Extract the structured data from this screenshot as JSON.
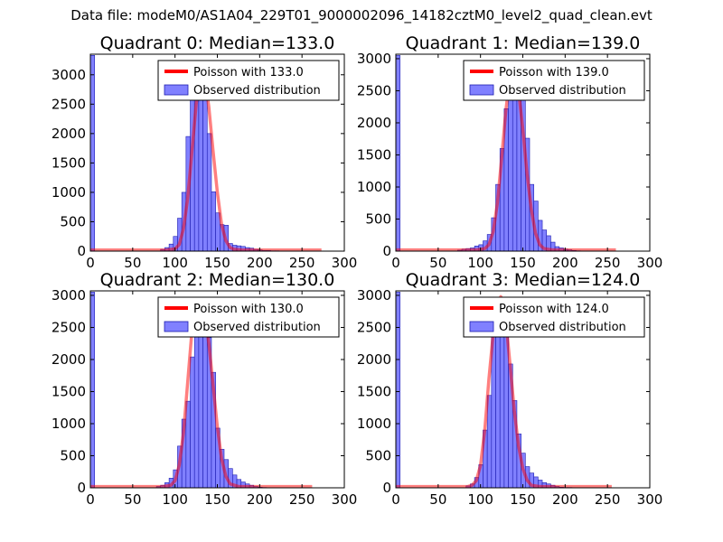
{
  "figure": {
    "suptitle": "Data file: modeM0/AS1A04_229T01_9000002096_14182cztM0_level2_quad_clean.evt"
  },
  "colors": {
    "bar_fill": "#8080ff",
    "bar_stroke": "#1c1cb0",
    "poisson_line": "#ff0000"
  },
  "chart_data": [
    {
      "type": "bar",
      "title": "Quadrant 0: Median=133.0",
      "xlim": [
        0,
        300
      ],
      "ylim": [
        0,
        3350
      ],
      "xticks": [
        "0",
        "50",
        "100",
        "150",
        "200",
        "250",
        "300"
      ],
      "yticks": [
        "0",
        "500",
        "1000",
        "1500",
        "2000",
        "2500",
        "3000"
      ],
      "legend": {
        "placement": "top-right",
        "line_label": "Poisson with 133.0",
        "bar_label": "Observed distribution"
      },
      "bins_left": [
        0,
        83,
        88,
        93,
        98,
        103,
        108,
        113,
        118,
        123,
        128,
        133,
        138,
        143,
        148,
        153,
        158,
        163,
        168,
        173,
        178,
        183,
        188,
        193,
        198,
        203,
        208,
        213,
        218
      ],
      "bin_width": 5,
      "counts": [
        3330,
        30,
        60,
        120,
        250,
        560,
        1000,
        1950,
        2730,
        3170,
        3170,
        2750,
        2000,
        1010,
        650,
        450,
        440,
        130,
        100,
        90,
        80,
        60,
        50,
        30,
        20,
        10,
        10,
        5,
        5
      ],
      "poisson": {
        "label": "Poisson with 133.0",
        "x": [
          0,
          90,
          100,
          105,
          110,
          115,
          120,
          125,
          130,
          133,
          135,
          140,
          145,
          150,
          155,
          160,
          165,
          170,
          180,
          273
        ],
        "y": [
          20,
          20,
          40,
          110,
          380,
          900,
          1700,
          2500,
          3000,
          3160,
          3000,
          2450,
          1700,
          1000,
          450,
          180,
          60,
          30,
          20,
          20
        ]
      }
    },
    {
      "type": "bar",
      "title": "Quadrant 1: Median=139.0",
      "xlim": [
        0,
        300
      ],
      "ylim": [
        0,
        3070
      ],
      "xticks": [
        "0",
        "50",
        "100",
        "150",
        "200",
        "250",
        "300"
      ],
      "yticks": [
        "0",
        "500",
        "1000",
        "1500",
        "2000",
        "2500",
        "3000"
      ],
      "legend": {
        "placement": "top-right",
        "line_label": "Poisson with 139.0",
        "bar_label": "Observed distribution"
      },
      "bins_left": [
        0,
        73,
        78,
        83,
        88,
        93,
        98,
        103,
        108,
        113,
        118,
        123,
        128,
        133,
        138,
        143,
        148,
        153,
        158,
        163,
        168,
        173,
        178,
        183,
        188,
        193,
        198,
        203,
        208,
        213
      ],
      "bin_width": 5,
      "counts": [
        3050,
        15,
        30,
        40,
        50,
        80,
        100,
        160,
        260,
        520,
        1040,
        1600,
        2220,
        2580,
        2760,
        2920,
        2360,
        1760,
        1040,
        780,
        480,
        330,
        240,
        140,
        70,
        50,
        30,
        20,
        10,
        5
      ],
      "poisson": {
        "label": "Poisson with 139.0",
        "x": [
          0,
          95,
          105,
          110,
          115,
          120,
          125,
          130,
          135,
          139,
          140,
          145,
          150,
          155,
          160,
          165,
          170,
          175,
          185,
          260
        ],
        "y": [
          20,
          20,
          40,
          100,
          300,
          750,
          1450,
          2200,
          2750,
          2950,
          2900,
          2500,
          1900,
          1200,
          650,
          280,
          100,
          40,
          20,
          20
        ]
      }
    },
    {
      "type": "bar",
      "title": "Quadrant 2: Median=130.0",
      "xlim": [
        0,
        300
      ],
      "ylim": [
        0,
        3070
      ],
      "xticks": [
        "0",
        "50",
        "100",
        "150",
        "200",
        "250",
        "300"
      ],
      "yticks": [
        "0",
        "500",
        "1000",
        "1500",
        "2000",
        "2500",
        "3000"
      ],
      "legend": {
        "placement": "top-right",
        "line_label": "Poisson with 130.0",
        "bar_label": "Observed distribution"
      },
      "bins_left": [
        0,
        78,
        83,
        88,
        93,
        98,
        103,
        108,
        113,
        118,
        123,
        128,
        133,
        138,
        143,
        148,
        153,
        158,
        163,
        168,
        173,
        178,
        183,
        188,
        193,
        198,
        203
      ],
      "bin_width": 5,
      "counts": [
        3050,
        20,
        40,
        80,
        150,
        280,
        650,
        1070,
        1350,
        2040,
        2580,
        2850,
        2710,
        2340,
        1800,
        930,
        600,
        440,
        300,
        200,
        130,
        90,
        60,
        40,
        20,
        10,
        5
      ],
      "poisson": {
        "label": "Poisson with 130.0",
        "x": [
          0,
          85,
          95,
          100,
          105,
          110,
          115,
          120,
          125,
          130,
          135,
          140,
          145,
          150,
          155,
          160,
          165,
          175,
          262
        ],
        "y": [
          20,
          20,
          40,
          110,
          350,
          850,
          1650,
          2450,
          2900,
          2950,
          2700,
          2250,
          1600,
          950,
          450,
          180,
          60,
          20,
          20
        ]
      }
    },
    {
      "type": "bar",
      "title": "Quadrant 3: Median=124.0",
      "xlim": [
        0,
        300
      ],
      "ylim": [
        0,
        3070
      ],
      "xticks": [
        "0",
        "50",
        "100",
        "150",
        "200",
        "250",
        "300"
      ],
      "yticks": [
        "0",
        "500",
        "1000",
        "1500",
        "2000",
        "2500",
        "3000"
      ],
      "legend": {
        "placement": "top-right",
        "line_label": "Poisson with 124.0",
        "bar_label": "Observed distribution"
      },
      "bins_left": [
        0,
        83,
        88,
        93,
        98,
        103,
        108,
        113,
        118,
        123,
        128,
        133,
        138,
        143,
        148,
        153,
        158,
        163,
        168,
        173,
        178,
        183,
        188,
        193,
        198,
        203
      ],
      "bin_width": 5,
      "counts": [
        3050,
        30,
        60,
        160,
        360,
        900,
        1440,
        2460,
        2780,
        2940,
        2400,
        1930,
        1360,
        840,
        540,
        330,
        230,
        170,
        120,
        80,
        60,
        40,
        20,
        10,
        5,
        5
      ],
      "poisson": {
        "label": "Poisson with 124.0",
        "x": [
          0,
          85,
          90,
          95,
          100,
          105,
          110,
          115,
          120,
          124,
          125,
          130,
          135,
          140,
          145,
          150,
          155,
          160,
          170,
          255
        ],
        "y": [
          20,
          20,
          40,
          110,
          350,
          900,
          1700,
          2400,
          2850,
          2980,
          2950,
          2600,
          1900,
          1200,
          650,
          300,
          120,
          40,
          20,
          20
        ]
      }
    }
  ]
}
